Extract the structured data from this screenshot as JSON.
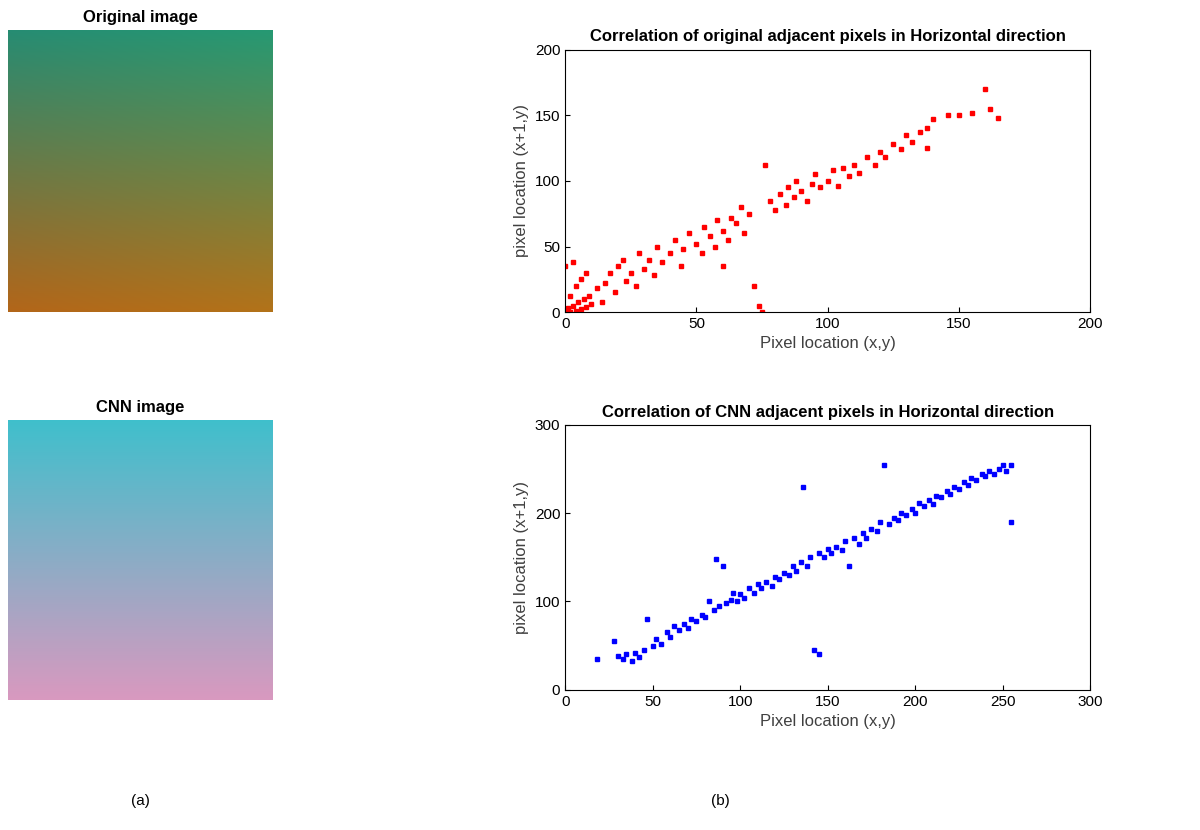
{
  "images": [
    {
      "title": "Original image"
    },
    {
      "title": "CNN image"
    }
  ],
  "captions": [
    "(a)",
    "(b)"
  ],
  "chart_data": [
    {
      "type": "scatter",
      "title": "Correlation of original adjacent pixels in Horizontal direction",
      "x_label": "Pixel location (x,y)",
      "y_label": "pixel location (x+1,y)",
      "color": "#ff0000",
      "marker": "square",
      "xlim": [
        0,
        200
      ],
      "ylim": [
        0,
        200
      ],
      "xticks": [
        0,
        50,
        100,
        150,
        200
      ],
      "yticks": [
        0,
        50,
        100,
        150,
        200
      ],
      "x": [
        0,
        1,
        2,
        3,
        4,
        5,
        6,
        7,
        8,
        9,
        10,
        2,
        4,
        0,
        3,
        6,
        8,
        12,
        14,
        15,
        17,
        19,
        20,
        22,
        23,
        25,
        27,
        28,
        30,
        32,
        34,
        35,
        37,
        40,
        42,
        44,
        45,
        47,
        50,
        52,
        53,
        55,
        57,
        58,
        60,
        60,
        62,
        63,
        65,
        67,
        68,
        70,
        72,
        74,
        75,
        76,
        78,
        80,
        82,
        84,
        85,
        87,
        88,
        90,
        92,
        94,
        95,
        97,
        100,
        102,
        104,
        106,
        108,
        110,
        112,
        115,
        118,
        120,
        122,
        125,
        128,
        130,
        132,
        135,
        138,
        138,
        140,
        146,
        150,
        155,
        160,
        162,
        165
      ],
      "y": [
        0,
        3,
        0,
        5,
        1,
        8,
        2,
        10,
        4,
        12,
        6,
        12,
        20,
        35,
        38,
        25,
        30,
        18,
        8,
        22,
        30,
        15,
        35,
        40,
        24,
        30,
        20,
        45,
        33,
        40,
        28,
        50,
        38,
        45,
        55,
        35,
        48,
        60,
        52,
        45,
        65,
        58,
        50,
        70,
        62,
        35,
        55,
        72,
        68,
        80,
        60,
        75,
        20,
        5,
        0,
        112,
        85,
        78,
        90,
        82,
        95,
        88,
        100,
        92,
        85,
        98,
        105,
        95,
        100,
        108,
        96,
        110,
        104,
        112,
        106,
        118,
        112,
        122,
        118,
        128,
        124,
        135,
        130,
        137,
        140,
        125,
        147,
        150,
        150,
        152,
        170,
        155,
        148
      ]
    },
    {
      "type": "scatter",
      "title": "Correlation of CNN adjacent pixels in Horizontal direction",
      "x_label": "Pixel location (x,y)",
      "y_label": "pixel location (x+1,y)",
      "color": "#0000ff",
      "marker": "square",
      "xlim": [
        0,
        300
      ],
      "ylim": [
        0,
        300
      ],
      "xticks": [
        0,
        50,
        100,
        150,
        200,
        250,
        300
      ],
      "yticks": [
        0,
        100,
        200,
        300
      ],
      "x": [
        18,
        28,
        30,
        33,
        35,
        38,
        40,
        42,
        45,
        47,
        50,
        52,
        55,
        58,
        60,
        62,
        65,
        68,
        70,
        72,
        75,
        78,
        80,
        82,
        85,
        86,
        88,
        90,
        92,
        95,
        96,
        98,
        100,
        102,
        105,
        108,
        110,
        112,
        115,
        118,
        120,
        122,
        125,
        128,
        130,
        132,
        135,
        136,
        138,
        140,
        142,
        145,
        145,
        148,
        150,
        152,
        155,
        158,
        160,
        162,
        165,
        168,
        170,
        172,
        175,
        178,
        180,
        182,
        185,
        188,
        190,
        192,
        195,
        198,
        200,
        202,
        205,
        208,
        210,
        212,
        215,
        218,
        220,
        222,
        225,
        228,
        230,
        232,
        235,
        238,
        240,
        242,
        245,
        248,
        250,
        252,
        255,
        255
      ],
      "y": [
        35,
        55,
        38,
        35,
        40,
        33,
        42,
        37,
        45,
        80,
        50,
        58,
        52,
        65,
        60,
        72,
        68,
        75,
        70,
        80,
        78,
        85,
        82,
        100,
        90,
        148,
        95,
        140,
        98,
        102,
        110,
        100,
        108,
        104,
        115,
        110,
        120,
        115,
        122,
        118,
        128,
        125,
        132,
        130,
        140,
        135,
        145,
        230,
        140,
        150,
        45,
        40,
        155,
        150,
        160,
        155,
        162,
        158,
        168,
        140,
        172,
        165,
        178,
        172,
        182,
        180,
        190,
        255,
        188,
        195,
        192,
        200,
        198,
        205,
        200,
        212,
        208,
        215,
        210,
        220,
        218,
        225,
        222,
        230,
        228,
        235,
        232,
        240,
        238,
        245,
        242,
        248,
        245,
        250,
        255,
        248,
        255,
        190
      ]
    }
  ]
}
